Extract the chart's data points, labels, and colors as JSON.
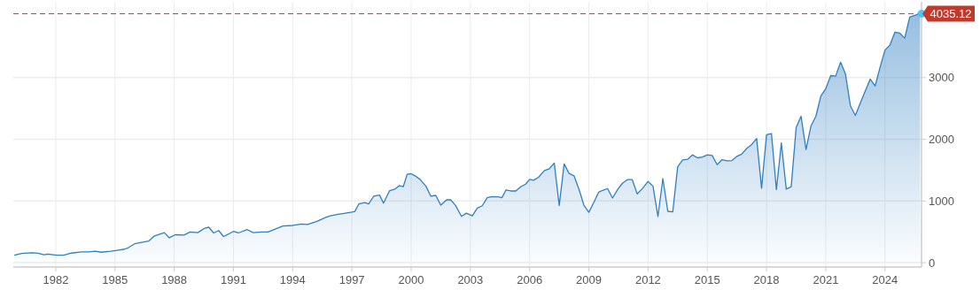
{
  "chart_data": {
    "type": "area",
    "x": [
      1979.9,
      1980.28,
      1980.8,
      1981.1,
      1981.4,
      1981.6,
      1982.05,
      1982.4,
      1982.8,
      1983.3,
      1983.7,
      1984.0,
      1984.3,
      1984.8,
      1985.2,
      1985.5,
      1985.7,
      1986.0,
      1986.3,
      1986.7,
      1987.0,
      1987.5,
      1987.75,
      1988.05,
      1988.5,
      1988.8,
      1989.2,
      1989.55,
      1989.75,
      1990.0,
      1990.25,
      1990.5,
      1991.0,
      1991.25,
      1991.7,
      1992.0,
      1992.45,
      1992.75,
      1993.2,
      1993.5,
      1994.0,
      1994.45,
      1994.75,
      1995.2,
      1995.65,
      1995.9,
      1996.3,
      1996.6,
      1997.0,
      1997.15,
      1997.35,
      1997.65,
      1997.85,
      1998.1,
      1998.4,
      1998.6,
      1998.9,
      1999.2,
      1999.4,
      1999.6,
      1999.8,
      2000.0,
      2000.2,
      2000.45,
      2000.75,
      2001.0,
      2001.25,
      2001.5,
      2001.8,
      2002.0,
      2002.25,
      2002.55,
      2002.8,
      2003.1,
      2003.35,
      2003.6,
      2003.85,
      2004.1,
      2004.4,
      2004.6,
      2004.8,
      2005.05,
      2005.3,
      2005.55,
      2005.8,
      2006.0,
      2006.2,
      2006.45,
      2006.75,
      2007.0,
      2007.25,
      2007.5,
      2007.75,
      2008.0,
      2008.25,
      2008.5,
      2008.75,
      2009.0,
      2009.25,
      2009.5,
      2009.7,
      2009.95,
      2010.2,
      2010.45,
      2010.7,
      2010.95,
      2011.2,
      2011.45,
      2011.7,
      2012.0,
      2012.25,
      2012.5,
      2012.75,
      2013.0,
      2013.25,
      2013.5,
      2013.75,
      2014.0,
      2014.25,
      2014.5,
      2014.75,
      2015.0,
      2015.25,
      2015.5,
      2015.75,
      2016.0,
      2016.25,
      2016.5,
      2016.75,
      2017.0,
      2017.25,
      2017.5,
      2017.75,
      2018.0,
      2018.25,
      2018.5,
      2018.75,
      2019.0,
      2019.25,
      2019.5,
      2019.75,
      2020.0,
      2020.25,
      2020.5,
      2020.75,
      2021.0,
      2021.25,
      2021.5,
      2021.75,
      2022.0,
      2022.25,
      2022.5,
      2022.75,
      2023.0,
      2023.25,
      2023.5,
      2023.75,
      2024.0,
      2024.25,
      2024.5,
      2024.75,
      2025.0,
      2025.25,
      2025.5,
      2025.78
    ],
    "series": [
      {
        "color": "#2f7fc1",
        "values": [
          122,
          151,
          160,
          155,
          130,
          140,
          122,
          122,
          156,
          175,
          175,
          185,
          170,
          185,
          205,
          220,
          248,
          307,
          326,
          350,
          434,
          487,
          404,
          453,
          448,
          497,
          487,
          560,
          575,
          482,
          521,
          424,
          507,
          482,
          536,
          487,
          497,
          497,
          555,
          594,
          604,
          628,
          619,
          667,
          731,
          760,
          785,
          800,
          822,
          832,
          952,
          976,
          952,
          1077,
          1096,
          966,
          1163,
          1197,
          1250,
          1231,
          1433,
          1442,
          1409,
          1351,
          1240,
          1077,
          1091,
          933,
          1019,
          1019,
          928,
          750,
          803,
          760,
          885,
          923,
          1053,
          1072,
          1067,
          1053,
          1178,
          1163,
          1163,
          1231,
          1274,
          1351,
          1337,
          1385,
          1495,
          1524,
          1615,
          928,
          1601,
          1447,
          1409,
          1192,
          933,
          817,
          976,
          1144,
          1173,
          1202,
          1048,
          1183,
          1288,
          1346,
          1346,
          1115,
          1197,
          1318,
          1240,
          750,
          1363,
          833,
          823,
          1555,
          1666,
          1676,
          1748,
          1700,
          1714,
          1748,
          1738,
          1589,
          1671,
          1651,
          1656,
          1724,
          1762,
          1854,
          1916,
          2013,
          1208,
          2075,
          2094,
          1184,
          1940,
          1194,
          1233,
          2191,
          2374,
          1834,
          2215,
          2374,
          2701,
          2821,
          3033,
          3024,
          3250,
          3057,
          2542,
          2388,
          2590,
          2783,
          2976,
          2865,
          3168,
          3447,
          3529,
          3736,
          3722,
          3640,
          3980,
          4010,
          4035.12
        ]
      }
    ],
    "xlim": [
      1979.85,
      2025.85
    ],
    "xticks": [
      1982,
      1985,
      1988,
      1991,
      1994,
      1997,
      2000,
      2003,
      2006,
      2009,
      2012,
      2015,
      2018,
      2021,
      2024
    ],
    "ylim": [
      -70,
      4230
    ],
    "yticks": [
      0,
      1000,
      2000,
      3000
    ],
    "grid": true,
    "ref_lines": [
      {
        "axis": "y",
        "value": 4035.12,
        "label": "4035.12",
        "color": "#c0392b",
        "line_style": "dashed"
      }
    ]
  }
}
